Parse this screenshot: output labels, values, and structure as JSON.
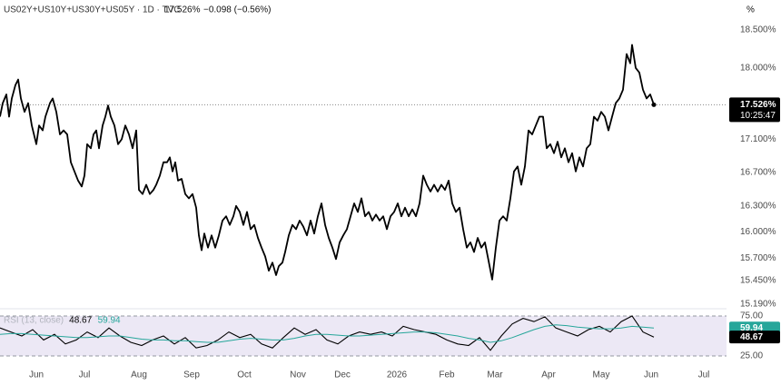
{
  "header": {
    "symbol": "US02Y+US10Y+US30Y+US05Y · 1D · TVC",
    "last": "17.526%",
    "change": "−0.098 (−0.56%)",
    "scale_button": "%"
  },
  "chart_data": [
    {
      "type": "line",
      "log_scale": true,
      "grid": false,
      "color": "#000000",
      "last_label": "17.526%",
      "countdown": "10:25:47",
      "x": [
        0,
        3,
        7,
        10,
        13,
        17,
        20,
        23,
        27,
        31,
        35,
        40,
        43,
        47,
        50,
        55,
        58,
        62,
        66,
        70,
        74,
        78,
        82,
        86,
        90,
        93,
        96,
        100,
        103,
        106,
        109,
        113,
        116,
        119,
        122,
        126,
        130,
        134,
        138,
        142,
        146,
        150,
        153,
        157,
        161,
        165,
        169,
        172,
        176,
        180,
        184,
        187,
        190,
        193,
        196,
        200,
        204,
        208,
        212,
        216,
        219,
        222,
        225,
        229,
        233,
        237,
        241,
        245,
        249,
        253,
        257,
        260,
        264,
        268,
        272,
        276,
        280,
        284,
        288,
        292,
        296,
        300,
        304,
        307,
        311,
        314,
        318,
        322,
        326,
        330,
        334,
        338,
        342,
        346,
        350,
        354,
        358,
        362,
        366,
        370,
        374,
        378,
        382,
        386,
        390,
        394,
        398,
        402,
        406,
        410,
        414,
        418,
        422,
        426,
        430,
        434,
        438,
        442,
        446,
        450,
        454,
        458,
        462,
        466,
        470,
        474,
        478,
        482,
        486,
        490,
        494,
        498,
        502,
        506,
        510,
        514,
        518,
        522,
        526,
        530,
        534,
        538,
        542,
        546,
        550,
        554,
        558,
        562,
        566,
        570,
        574,
        578,
        582,
        586,
        590,
        594,
        598,
        602,
        606,
        610,
        614,
        618,
        622,
        626,
        630,
        634,
        638,
        642,
        646,
        650,
        654,
        658,
        662,
        666,
        670,
        674,
        678,
        682,
        686,
        690,
        694,
        696,
        700,
        704,
        708,
        712,
        716,
        720
      ],
      "values": [
        17.38,
        17.55,
        17.66,
        17.38,
        17.61,
        17.78,
        17.85,
        17.61,
        17.44,
        17.55,
        17.27,
        17.04,
        17.27,
        17.21,
        17.38,
        17.55,
        17.61,
        17.44,
        17.16,
        17.21,
        17.16,
        16.82,
        16.71,
        16.6,
        16.53,
        16.66,
        17.04,
        16.99,
        17.16,
        17.21,
        16.99,
        17.27,
        17.38,
        17.52,
        17.38,
        17.27,
        17.04,
        17.1,
        17.27,
        17.16,
        16.99,
        17.21,
        16.49,
        16.44,
        16.55,
        16.44,
        16.49,
        16.55,
        16.66,
        16.82,
        16.82,
        16.88,
        16.71,
        16.82,
        16.6,
        16.62,
        16.44,
        16.39,
        16.44,
        16.28,
        15.96,
        15.79,
        15.98,
        15.82,
        15.96,
        15.82,
        15.96,
        16.13,
        16.18,
        16.08,
        16.18,
        16.3,
        16.23,
        16.08,
        16.23,
        16.03,
        16.08,
        15.93,
        15.82,
        15.72,
        15.56,
        15.65,
        15.51,
        15.61,
        15.65,
        15.77,
        15.96,
        16.08,
        16.03,
        16.13,
        16.06,
        15.96,
        16.13,
        15.98,
        16.18,
        16.33,
        16.08,
        15.93,
        15.82,
        15.69,
        15.88,
        15.96,
        16.03,
        16.18,
        16.33,
        16.23,
        16.39,
        16.18,
        16.23,
        16.13,
        16.2,
        16.13,
        16.18,
        16.03,
        16.18,
        16.23,
        16.33,
        16.18,
        16.28,
        16.18,
        16.26,
        16.18,
        16.33,
        16.66,
        16.55,
        16.47,
        16.55,
        16.47,
        16.55,
        16.49,
        16.6,
        16.33,
        16.23,
        16.28,
        16.03,
        15.82,
        15.88,
        15.77,
        15.93,
        15.82,
        15.88,
        15.67,
        15.46,
        15.82,
        16.13,
        16.18,
        16.13,
        16.39,
        16.71,
        16.77,
        16.55,
        16.77,
        17.21,
        17.16,
        17.27,
        17.38,
        17.38,
        16.99,
        17.04,
        16.93,
        17.07,
        16.88,
        16.99,
        16.82,
        16.93,
        16.71,
        16.88,
        16.77,
        16.99,
        17.04,
        17.38,
        17.33,
        17.44,
        17.38,
        17.21,
        17.38,
        17.55,
        17.61,
        17.72,
        18.18,
        18.06,
        18.3,
        18.0,
        17.94,
        17.72,
        17.61,
        17.66,
        17.53
      ],
      "xlim": [
        0,
        800
      ],
      "ylim": [
        15.14,
        18.9
      ],
      "yticks": [
        {
          "value": 18.5,
          "label": "18.500%"
        },
        {
          "value": 18.0,
          "label": "18.000%"
        },
        {
          "value": 17.1,
          "label": "17.100%"
        },
        {
          "value": 16.7,
          "label": "16.700%"
        },
        {
          "value": 16.3,
          "label": "16.300%"
        },
        {
          "value": 16.0,
          "label": "16.000%"
        },
        {
          "value": 15.7,
          "label": "15.700%"
        },
        {
          "value": 15.45,
          "label": "15.450%"
        },
        {
          "value": 15.19,
          "label": "15.190%"
        }
      ],
      "xticks": [
        {
          "value": 40,
          "label": "Jun"
        },
        {
          "value": 93,
          "label": "Jul"
        },
        {
          "value": 153,
          "label": "Aug"
        },
        {
          "value": 211,
          "label": "Sep"
        },
        {
          "value": 269,
          "label": "Oct"
        },
        {
          "value": 328,
          "label": "Nov"
        },
        {
          "value": 377,
          "label": "Dec"
        },
        {
          "value": 437,
          "label": "2026"
        },
        {
          "value": 492,
          "label": "Feb"
        },
        {
          "value": 545,
          "label": "Mar"
        },
        {
          "value": 604,
          "label": "Apr"
        },
        {
          "value": 662,
          "label": "May"
        },
        {
          "value": 717,
          "label": "Jun"
        },
        {
          "value": 775,
          "label": "Jul"
        }
      ]
    },
    {
      "type": "line",
      "title": "RSI (13, close)",
      "band_color": "#ece8f5",
      "x": [
        0,
        12,
        24,
        36,
        48,
        60,
        72,
        84,
        96,
        108,
        120,
        132,
        144,
        156,
        168,
        180,
        192,
        204,
        216,
        228,
        240,
        252,
        264,
        276,
        288,
        300,
        312,
        324,
        336,
        348,
        360,
        372,
        384,
        396,
        408,
        420,
        432,
        444,
        456,
        468,
        480,
        492,
        504,
        516,
        528,
        540,
        552,
        564,
        576,
        588,
        600,
        612,
        624,
        636,
        648,
        660,
        672,
        684,
        696,
        708,
        720
      ],
      "xlim": [
        0,
        800
      ],
      "ylim": [
        10.2,
        84.1
      ],
      "yticks": [
        {
          "value": 75,
          "label": "75.00"
        },
        {
          "value": 25,
          "label": "25.00"
        }
      ],
      "series": [
        {
          "color": "#000000",
          "last": 48.67,
          "values": [
            60,
            55,
            50,
            58,
            45,
            52,
            40,
            45,
            55,
            48,
            60,
            50,
            42,
            38,
            45,
            50,
            40,
            48,
            35,
            38,
            45,
            55,
            48,
            52,
            40,
            35,
            48,
            60,
            52,
            58,
            45,
            40,
            50,
            55,
            52,
            55,
            50,
            62,
            58,
            55,
            52,
            45,
            40,
            38,
            48,
            32,
            50,
            65,
            72,
            68,
            74,
            60,
            55,
            50,
            58,
            62,
            55,
            68,
            75,
            55,
            48.67
          ]
        },
        {
          "color": "#26a69a",
          "last": 59.94,
          "values": [
            52,
            53,
            53,
            52,
            51,
            50,
            49,
            48,
            48,
            49,
            50,
            50,
            48,
            46,
            45,
            45,
            44,
            44,
            43,
            42,
            42,
            44,
            46,
            47,
            46,
            45,
            45,
            47,
            50,
            52,
            52,
            51,
            50,
            50,
            51,
            52,
            53,
            54,
            55,
            55,
            54,
            52,
            50,
            47,
            45,
            42,
            44,
            48,
            53,
            58,
            62,
            64,
            63,
            61,
            60,
            59,
            59,
            60,
            62,
            61,
            59.94
          ]
        }
      ]
    }
  ]
}
